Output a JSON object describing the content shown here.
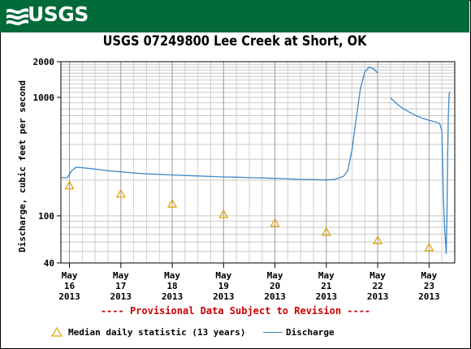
{
  "header": {
    "logo_text": "USGS",
    "brand_color": "#006a39"
  },
  "chart_data": {
    "type": "line",
    "title": "USGS 07249800 Lee Creek at Short, OK",
    "ylabel": "Discharge, cubic feet per second",
    "xlabel": "",
    "y_scale": "log",
    "ylim": [
      40,
      2000
    ],
    "y_ticks": [
      {
        "value": 40,
        "label": "40"
      },
      {
        "value": 100,
        "label": "100"
      },
      {
        "value": 1000,
        "label": "1000"
      },
      {
        "value": 2000,
        "label": "2000"
      }
    ],
    "xlim": [
      "2013-05-15 20:00",
      "2013-05-23 12:00"
    ],
    "x_ticks": [
      {
        "x": "2013-05-16",
        "label_lines": [
          "May",
          "16",
          "2013"
        ]
      },
      {
        "x": "2013-05-17",
        "label_lines": [
          "May",
          "17",
          "2013"
        ]
      },
      {
        "x": "2013-05-18",
        "label_lines": [
          "May",
          "18",
          "2013"
        ]
      },
      {
        "x": "2013-05-19",
        "label_lines": [
          "May",
          "19",
          "2013"
        ]
      },
      {
        "x": "2013-05-20",
        "label_lines": [
          "May",
          "20",
          "2013"
        ]
      },
      {
        "x": "2013-05-21",
        "label_lines": [
          "May",
          "21",
          "2013"
        ]
      },
      {
        "x": "2013-05-22",
        "label_lines": [
          "May",
          "22",
          "2013"
        ]
      },
      {
        "x": "2013-05-23",
        "label_lines": [
          "May",
          "23",
          "2013"
        ]
      }
    ],
    "grid": true,
    "legend_position": "bottom",
    "series": [
      {
        "name": "Discharge",
        "color": "#3e87c6",
        "style": "line",
        "segments": [
          [
            [
              "2013-05-15 20:00",
              210
            ],
            [
              "2013-05-15 23:00",
              210
            ],
            [
              "2013-05-16 01:00",
              240
            ],
            [
              "2013-05-16 03:00",
              257
            ],
            [
              "2013-05-16 06:00",
              255
            ],
            [
              "2013-05-16 12:00",
              248
            ],
            [
              "2013-05-16 18:00",
              240
            ],
            [
              "2013-05-17 00:00",
              235
            ],
            [
              "2013-05-17 06:00",
              230
            ],
            [
              "2013-05-17 12:00",
              226
            ],
            [
              "2013-05-17 18:00",
              224
            ],
            [
              "2013-05-18 00:00",
              221
            ],
            [
              "2013-05-18 06:00",
              219
            ],
            [
              "2013-05-18 12:00",
              217
            ],
            [
              "2013-05-18 18:00",
              215
            ],
            [
              "2013-05-19 00:00",
              213
            ],
            [
              "2013-05-19 06:00",
              212
            ],
            [
              "2013-05-19 12:00",
              210
            ],
            [
              "2013-05-19 18:00",
              209
            ],
            [
              "2013-05-20 00:00",
              207
            ],
            [
              "2013-05-20 06:00",
              205
            ],
            [
              "2013-05-20 12:00",
              203
            ],
            [
              "2013-05-20 18:00",
              202
            ],
            [
              "2013-05-21 00:00",
              201
            ],
            [
              "2013-05-21 04:00",
              203
            ],
            [
              "2013-05-21 08:00",
              215
            ],
            [
              "2013-05-21 10:00",
              240
            ],
            [
              "2013-05-21 12:00",
              360
            ],
            [
              "2013-05-21 14:00",
              680
            ],
            [
              "2013-05-21 16:00",
              1200
            ],
            [
              "2013-05-21 18:00",
              1650
            ],
            [
              "2013-05-21 20:00",
              1800
            ],
            [
              "2013-05-21 22:00",
              1750
            ],
            [
              "2013-05-22 00:00",
              1600
            ]
          ],
          [
            [
              "2013-05-22 06:00",
              990
            ],
            [
              "2013-05-22 09:00",
              880
            ],
            [
              "2013-05-22 12:00",
              800
            ],
            [
              "2013-05-22 15:00",
              745
            ],
            [
              "2013-05-22 18:00",
              700
            ],
            [
              "2013-05-22 21:00",
              665
            ],
            [
              "2013-05-23 00:00",
              640
            ],
            [
              "2013-05-23 03:00",
              620
            ],
            [
              "2013-05-23 05:00",
              600
            ],
            [
              "2013-05-23 06:00",
              520
            ],
            [
              "2013-05-23 06:40",
              150
            ],
            [
              "2013-05-23 07:10",
              85
            ],
            [
              "2013-05-23 07:40",
              60
            ],
            [
              "2013-05-23 08:00",
              48
            ],
            [
              "2013-05-23 08:20",
              90
            ],
            [
              "2013-05-23 08:40",
              300
            ],
            [
              "2013-05-23 09:00",
              700
            ],
            [
              "2013-05-23 09:20",
              1050
            ],
            [
              "2013-05-23 09:40",
              1120
            ]
          ]
        ]
      },
      {
        "name": "Median daily statistic (13 years)",
        "color": "#e0a000",
        "style": "triangle-markers",
        "points": [
          [
            "2013-05-16",
            180
          ],
          [
            "2013-05-17",
            153
          ],
          [
            "2013-05-18",
            126
          ],
          [
            "2013-05-19",
            103
          ],
          [
            "2013-05-20",
            87
          ],
          [
            "2013-05-21",
            73
          ],
          [
            "2013-05-22",
            62
          ],
          [
            "2013-05-23",
            54
          ]
        ]
      }
    ],
    "legend": {
      "median_label": "Median daily statistic (13 years)",
      "discharge_label": "Discharge"
    },
    "footnote": "---- Provisional Data Subject to Revision ----"
  }
}
